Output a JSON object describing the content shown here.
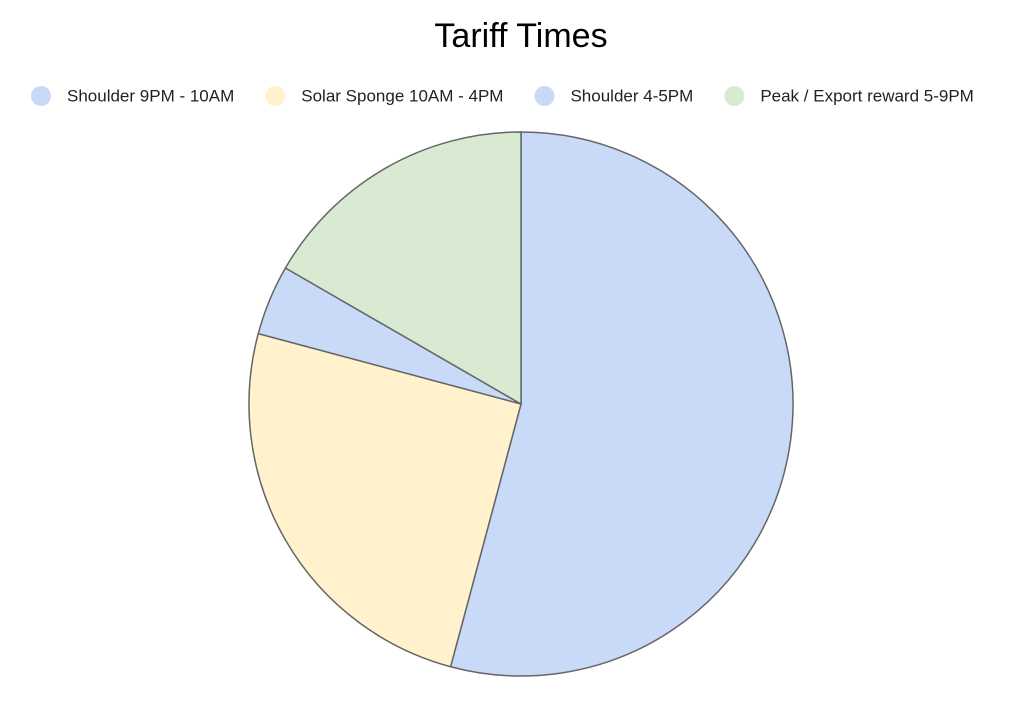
{
  "chart_data": {
    "type": "pie",
    "title": "Tariff Times",
    "categories": [
      "Shoulder 9PM - 10AM",
      "Solar Sponge 10AM - 4PM",
      "Shoulder 4-5PM",
      "Peak / Export reward 5-9PM"
    ],
    "values": [
      13,
      6,
      1,
      4
    ],
    "colors": [
      "#c9daf8",
      "#fff2cc",
      "#c9daf8",
      "#d9ead3"
    ],
    "legend": "top"
  }
}
